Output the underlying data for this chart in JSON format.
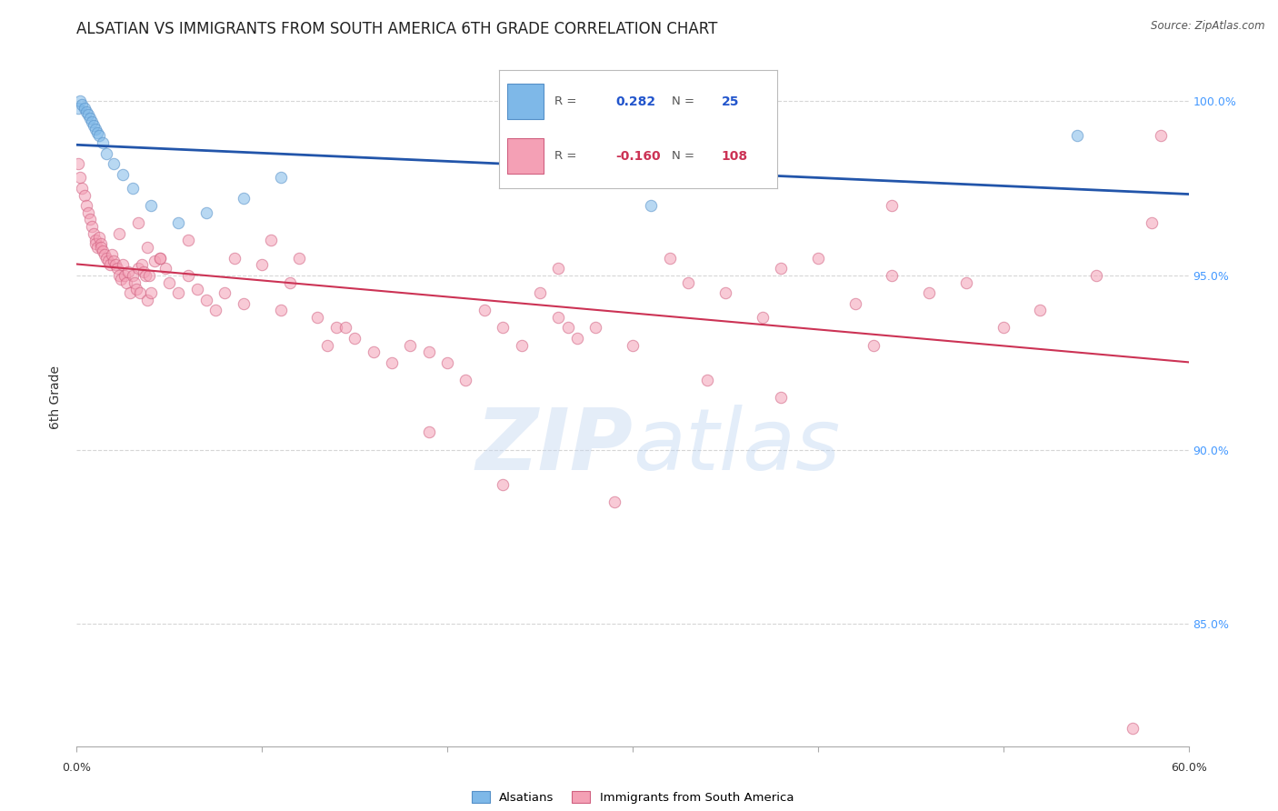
{
  "title": "ALSATIAN VS IMMIGRANTS FROM SOUTH AMERICA 6TH GRADE CORRELATION CHART",
  "source": "Source: ZipAtlas.com",
  "ylabel_left": "6th Grade",
  "x_min": 0.0,
  "x_max": 60.0,
  "y_min": 81.5,
  "y_max": 101.5,
  "y_ticks": [
    85.0,
    90.0,
    95.0,
    100.0
  ],
  "y_tick_labels": [
    "85.0%",
    "90.0%",
    "95.0%",
    "100.0%"
  ],
  "right_axis_color": "#4499ff",
  "grid_color": "#cccccc",
  "blue_color": "#7eb8e8",
  "pink_color": "#f4a0b5",
  "blue_edge_color": "#5590c8",
  "pink_edge_color": "#d06080",
  "trend_blue_color": "#2255aa",
  "trend_pink_color": "#cc3355",
  "legend_R_blue": "0.282",
  "legend_N_blue": "25",
  "legend_R_pink": "-0.160",
  "legend_N_pink": "108",
  "blue_scatter_x": [
    0.1,
    0.2,
    0.3,
    0.4,
    0.5,
    0.6,
    0.7,
    0.8,
    0.9,
    1.0,
    1.1,
    1.2,
    1.4,
    1.6,
    2.0,
    2.5,
    3.0,
    4.0,
    5.5,
    7.0,
    9.0,
    11.0,
    24.0,
    31.0,
    54.0
  ],
  "blue_scatter_y": [
    99.8,
    100.0,
    99.9,
    99.8,
    99.7,
    99.6,
    99.5,
    99.4,
    99.3,
    99.2,
    99.1,
    99.0,
    98.8,
    98.5,
    98.2,
    97.9,
    97.5,
    97.0,
    96.5,
    96.8,
    97.2,
    97.8,
    98.2,
    97.0,
    99.0
  ],
  "pink_scatter_x": [
    0.1,
    0.2,
    0.3,
    0.4,
    0.5,
    0.6,
    0.7,
    0.8,
    0.9,
    1.0,
    1.0,
    1.1,
    1.2,
    1.3,
    1.3,
    1.4,
    1.5,
    1.6,
    1.7,
    1.8,
    1.9,
    2.0,
    2.1,
    2.2,
    2.3,
    2.4,
    2.5,
    2.6,
    2.7,
    2.8,
    2.9,
    3.0,
    3.1,
    3.2,
    3.3,
    3.4,
    3.5,
    3.6,
    3.7,
    3.8,
    3.9,
    4.0,
    4.2,
    4.5,
    4.8,
    5.0,
    5.5,
    6.0,
    6.5,
    7.0,
    7.5,
    8.0,
    9.0,
    10.0,
    11.0,
    12.0,
    13.0,
    14.0,
    15.0,
    16.0,
    17.0,
    18.0,
    19.0,
    20.0,
    21.0,
    22.0,
    23.0,
    24.0,
    25.0,
    26.0,
    27.0,
    28.0,
    30.0,
    32.0,
    33.0,
    35.0,
    37.0,
    38.0,
    40.0,
    42.0,
    44.0,
    46.0,
    48.0,
    50.0,
    52.0,
    55.0,
    57.0,
    10.5,
    13.5,
    3.3,
    3.8,
    2.3,
    4.5,
    6.0,
    8.5,
    11.5,
    14.5,
    19.0,
    23.0,
    26.5,
    29.0,
    34.0,
    38.0,
    43.0,
    26.0,
    44.0,
    58.0,
    58.5
  ],
  "pink_scatter_y": [
    98.2,
    97.8,
    97.5,
    97.3,
    97.0,
    96.8,
    96.6,
    96.4,
    96.2,
    96.0,
    95.9,
    95.8,
    96.1,
    95.9,
    95.8,
    95.7,
    95.6,
    95.5,
    95.4,
    95.3,
    95.6,
    95.4,
    95.3,
    95.2,
    95.0,
    94.9,
    95.3,
    95.0,
    94.8,
    95.1,
    94.5,
    95.0,
    94.8,
    94.6,
    95.2,
    94.5,
    95.3,
    95.1,
    95.0,
    94.3,
    95.0,
    94.5,
    95.4,
    95.5,
    95.2,
    94.8,
    94.5,
    95.0,
    94.6,
    94.3,
    94.0,
    94.5,
    94.2,
    95.3,
    94.0,
    95.5,
    93.8,
    93.5,
    93.2,
    92.8,
    92.5,
    93.0,
    92.8,
    92.5,
    92.0,
    94.0,
    93.5,
    93.0,
    94.5,
    93.8,
    93.2,
    93.5,
    93.0,
    95.5,
    94.8,
    94.5,
    93.8,
    95.2,
    95.5,
    94.2,
    95.0,
    94.5,
    94.8,
    93.5,
    94.0,
    95.0,
    82.0,
    96.0,
    93.0,
    96.5,
    95.8,
    96.2,
    95.5,
    96.0,
    95.5,
    94.8,
    93.5,
    90.5,
    89.0,
    93.5,
    88.5,
    92.0,
    91.5,
    93.0,
    95.2,
    97.0,
    96.5,
    99.0
  ],
  "marker_size": 80,
  "alpha": 0.55,
  "title_fontsize": 12,
  "tick_fontsize": 9
}
